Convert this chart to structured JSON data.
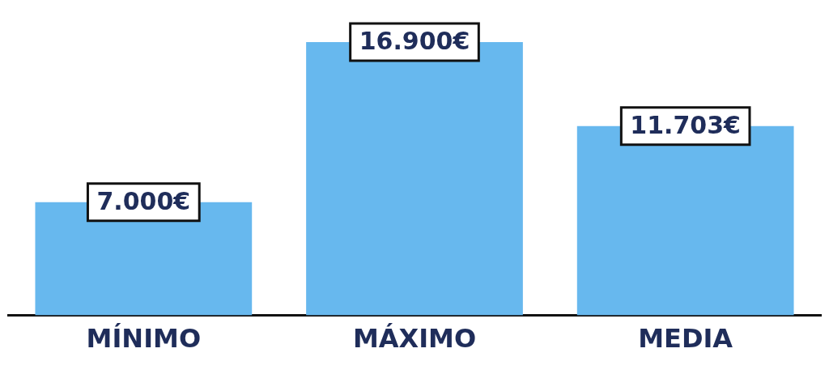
{
  "chart_data": {
    "type": "bar",
    "categories": [
      "MÍNIMO",
      "MÁXIMO",
      "MEDIA"
    ],
    "values": [
      7000,
      16900,
      11703
    ],
    "value_labels": [
      "7.000€",
      "16.900€",
      "11.703€"
    ],
    "color": "#67b8ee"
  }
}
